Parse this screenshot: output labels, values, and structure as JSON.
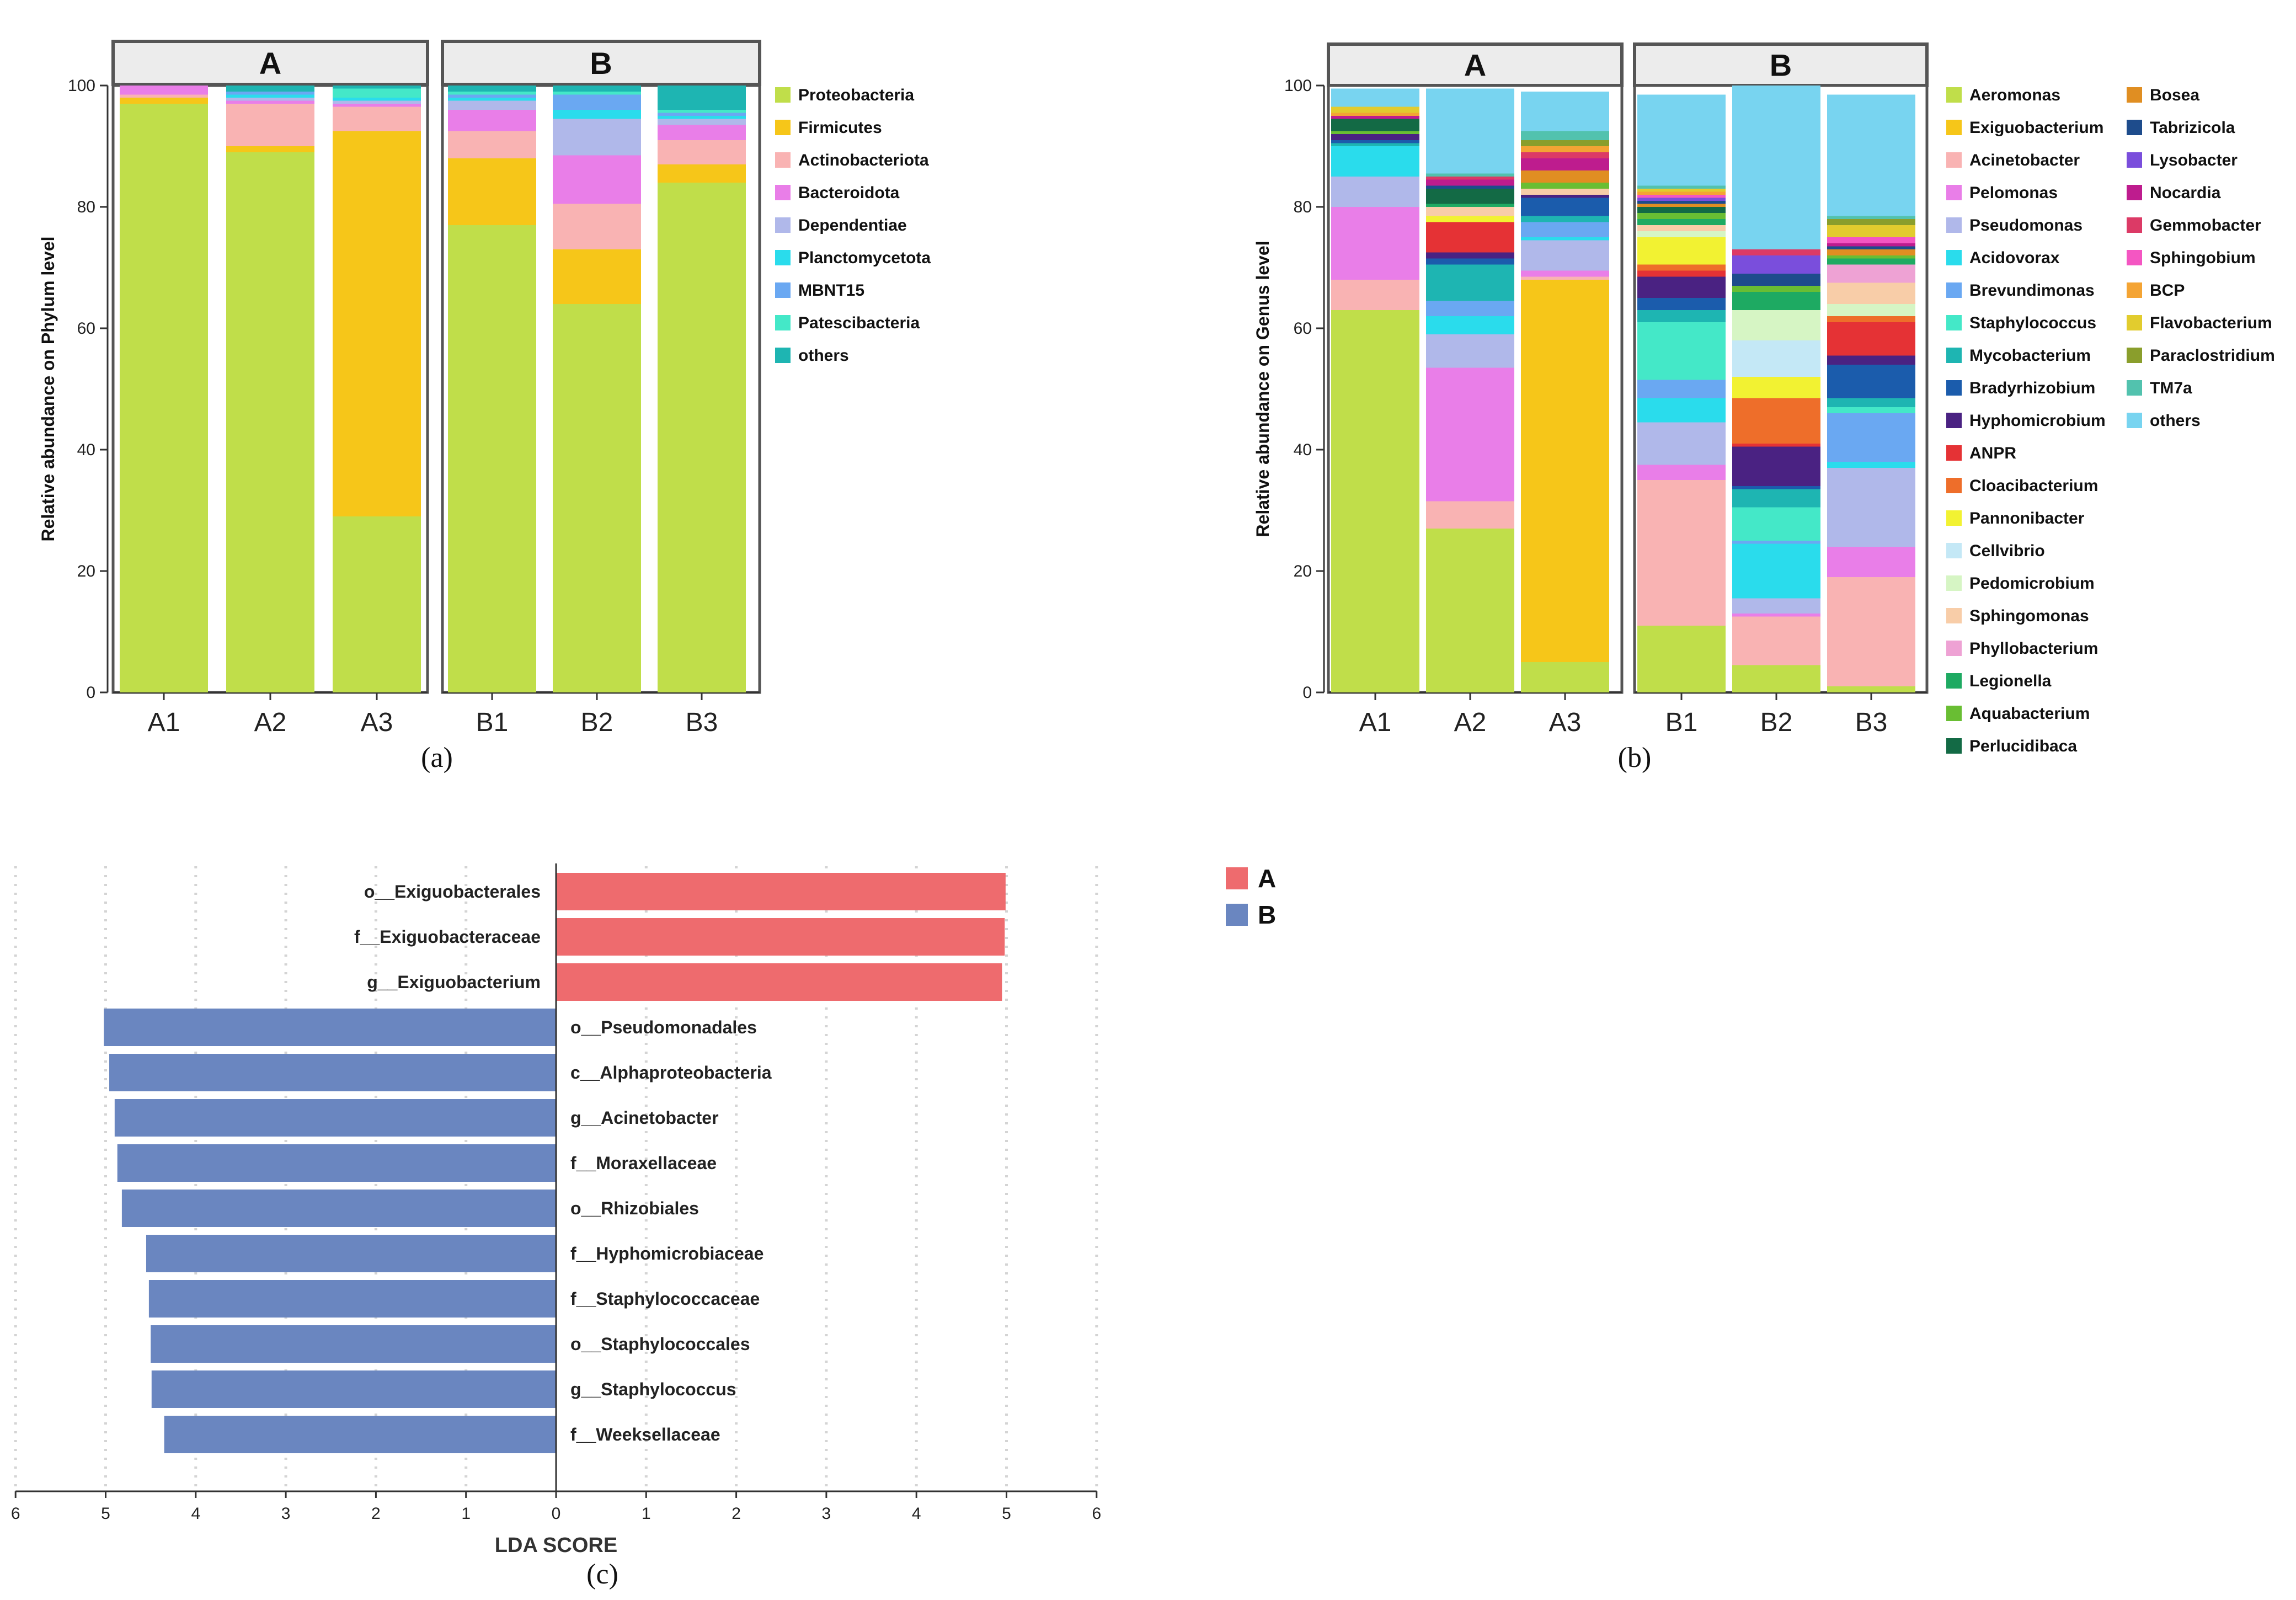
{
  "chart_data": [
    {
      "type": "bar",
      "stacked": true,
      "ylabel": "Relative abundance on Phylum level",
      "ylim": [
        0,
        100
      ],
      "yticks": [
        0,
        20,
        40,
        60,
        80,
        100
      ],
      "caption": "(a)",
      "facets": [
        {
          "label": "A",
          "categories": [
            "A1",
            "A2",
            "A3"
          ]
        },
        {
          "label": "B",
          "categories": [
            "B1",
            "B2",
            "B3"
          ]
        }
      ],
      "series": [
        {
          "name": "Proteobacteria",
          "color": "#C0DE4A",
          "values": [
            97,
            89,
            29,
            77,
            64,
            84
          ]
        },
        {
          "name": "Firmicutes",
          "color": "#F6C619",
          "values": [
            1,
            1,
            63.5,
            11,
            9,
            3
          ]
        },
        {
          "name": "Actinobacteriota",
          "color": "#F9B3B3",
          "values": [
            0.5,
            7,
            4,
            4.5,
            7.5,
            4
          ]
        },
        {
          "name": "Bacteroidota",
          "color": "#E97EE8",
          "values": [
            1.5,
            0.5,
            0.5,
            3.5,
            8,
            2.5
          ]
        },
        {
          "name": "Dependentiae",
          "color": "#B0B8EA",
          "values": [
            0,
            0.5,
            0.5,
            1.5,
            6,
            1
          ]
        },
        {
          "name": "Planctomycetota",
          "color": "#2ADCEC",
          "values": [
            0,
            0.5,
            0.5,
            0.5,
            1.5,
            0.5
          ]
        },
        {
          "name": "MBNT15",
          "color": "#6AA8F2",
          "values": [
            0,
            0.5,
            0,
            0.5,
            2.5,
            0.5
          ]
        },
        {
          "name": "Patescibacteria",
          "color": "#44E8C8",
          "values": [
            0,
            0,
            1.5,
            0.5,
            0.5,
            0.5
          ]
        },
        {
          "name": "others",
          "color": "#1EB5B2",
          "values": [
            0,
            1,
            0.5,
            1,
            1,
            4
          ]
        }
      ]
    },
    {
      "type": "bar",
      "stacked": true,
      "ylabel": "Relative abundance on Genus level",
      "ylim": [
        0,
        100
      ],
      "yticks": [
        0,
        20,
        40,
        60,
        80,
        100
      ],
      "caption": "(b)",
      "facets": [
        {
          "label": "A",
          "categories": [
            "A1",
            "A2",
            "A3"
          ]
        },
        {
          "label": "B",
          "categories": [
            "B1",
            "B2",
            "B3"
          ]
        }
      ],
      "series": [
        {
          "name": "Aeromonas",
          "color": "#C0DE4A",
          "values": [
            63,
            27,
            5,
            11,
            4.5,
            1
          ]
        },
        {
          "name": "Exiguobacterium",
          "color": "#F6C619",
          "values": [
            0,
            0,
            63,
            0,
            0,
            0
          ]
        },
        {
          "name": "Acinetobacter",
          "color": "#F9B3B3",
          "values": [
            5,
            4.5,
            0.5,
            24,
            8,
            18
          ]
        },
        {
          "name": "Pelomonas",
          "color": "#E97EE8",
          "values": [
            12,
            22,
            1,
            2.5,
            0.5,
            5
          ]
        },
        {
          "name": "Pseudomonas",
          "color": "#B0B8EA",
          "values": [
            5,
            5.5,
            5,
            7,
            2.5,
            13
          ]
        },
        {
          "name": "Acidovorax",
          "color": "#2ADCEC",
          "values": [
            5,
            3,
            0.5,
            4,
            9,
            1
          ]
        },
        {
          "name": "Brevundimonas",
          "color": "#6AA8F2",
          "values": [
            0,
            2.5,
            2.5,
            3,
            0.5,
            8
          ]
        },
        {
          "name": "Staphylococcus",
          "color": "#44E8C8",
          "values": [
            0,
            0,
            0,
            9.5,
            5.5,
            1
          ]
        },
        {
          "name": "Mycobacterium",
          "color": "#1EB5B2",
          "values": [
            0.5,
            6,
            1,
            2,
            3,
            1.5
          ]
        },
        {
          "name": "Bradyrhizobium",
          "color": "#1B5CAC",
          "values": [
            0.5,
            1,
            3,
            2,
            0.5,
            5.5
          ]
        },
        {
          "name": "Hyphomicrobium",
          "color": "#4A2282",
          "values": [
            1,
            1,
            0.5,
            3.5,
            6.5,
            1.5
          ]
        },
        {
          "name": "ANPR",
          "color": "#E53235",
          "values": [
            0,
            5,
            0,
            1,
            0.5,
            5.5
          ]
        },
        {
          "name": "Cloacibacterium",
          "color": "#EE6E2A",
          "values": [
            0,
            0,
            0,
            1,
            7.5,
            1
          ]
        },
        {
          "name": "Pannonibacter",
          "color": "#F2F232",
          "values": [
            0,
            1,
            0,
            4.5,
            3.5,
            0
          ]
        },
        {
          "name": "Cellvibrio",
          "color": "#C4E8F6",
          "values": [
            0,
            0,
            0,
            0,
            6,
            0
          ]
        },
        {
          "name": "Pedomicrobium",
          "color": "#D6F5C4",
          "values": [
            0,
            0,
            0,
            1,
            5,
            2
          ]
        },
        {
          "name": "Sphingomonas",
          "color": "#F8CDA8",
          "values": [
            0,
            1.5,
            1,
            1,
            0,
            3.5
          ]
        },
        {
          "name": "Phyllobacterium",
          "color": "#EEA2D4",
          "values": [
            0,
            0,
            0,
            0,
            0,
            3
          ]
        },
        {
          "name": "Legionella",
          "color": "#1EAA62",
          "values": [
            0,
            0.5,
            0,
            1,
            3,
            1
          ]
        },
        {
          "name": "Aquabacterium",
          "color": "#69BE33",
          "values": [
            0.5,
            0,
            1,
            1,
            1,
            0.5
          ]
        },
        {
          "name": "Perlucidibaca",
          "color": "#136A45",
          "values": [
            2,
            2.5,
            0,
            1,
            0,
            0
          ]
        },
        {
          "name": "Bosea",
          "color": "#E08E22",
          "values": [
            0,
            0,
            2,
            0.5,
            0,
            1
          ]
        },
        {
          "name": "Tabrizicola",
          "color": "#1E4C8C",
          "values": [
            0,
            0.5,
            0,
            0.5,
            2,
            0.5
          ]
        },
        {
          "name": "Lysobacter",
          "color": "#7A4EDC",
          "values": [
            0,
            0,
            0,
            0.5,
            3,
            0
          ]
        },
        {
          "name": "Nocardia",
          "color": "#BE1C8E",
          "values": [
            0.5,
            1,
            2,
            0,
            0,
            0.5
          ]
        },
        {
          "name": "Gemmobacter",
          "color": "#DC3A66",
          "values": [
            0,
            0.5,
            1,
            0,
            1,
            0
          ]
        },
        {
          "name": "Sphingobium",
          "color": "#F456C2",
          "values": [
            0,
            0,
            0,
            0.5,
            0,
            1
          ]
        },
        {
          "name": "BCP",
          "color": "#F4A434",
          "values": [
            0.5,
            0,
            1,
            0.5,
            0,
            0
          ]
        },
        {
          "name": "Flavobacterium",
          "color": "#E2CC2E",
          "values": [
            1,
            0,
            0,
            0.5,
            0,
            2
          ]
        },
        {
          "name": "Paraclostridium",
          "color": "#8A9E2C",
          "values": [
            0,
            0,
            1,
            0,
            0,
            1
          ]
        },
        {
          "name": "TM7a",
          "color": "#52C2AE",
          "values": [
            0,
            0.5,
            1.5,
            0.5,
            0,
            0.5
          ]
        },
        {
          "name": "others",
          "color": "#78D4F0",
          "values": [
            3,
            14,
            6.5,
            15,
            27,
            20
          ]
        }
      ]
    },
    {
      "type": "bar",
      "orientation": "horizontal",
      "xlabel": "LDA SCORE",
      "xlim": [
        -6,
        6
      ],
      "xtick_labels": [
        "6",
        "5",
        "4",
        "3",
        "2",
        "1",
        "0",
        "1",
        "2",
        "3",
        "4",
        "5",
        "6"
      ],
      "caption": "(c)",
      "legend": [
        {
          "name": "A",
          "color": "#EE6B6E"
        },
        {
          "name": "B",
          "color": "#6A86C0"
        }
      ],
      "bars": [
        {
          "label": "o__Exiguobacterales",
          "group": "A",
          "value": 4.99
        },
        {
          "label": "f__Exiguobacteraceae",
          "group": "A",
          "value": 4.98
        },
        {
          "label": "g__Exiguobacterium",
          "group": "A",
          "value": 4.95
        },
        {
          "label": "o__Pseudomonadales",
          "group": "B",
          "value": 5.02
        },
        {
          "label": "c__Alphaproteobacteria",
          "group": "B",
          "value": 4.96
        },
        {
          "label": "g__Acinetobacter",
          "group": "B",
          "value": 4.9
        },
        {
          "label": "f__Moraxellaceae",
          "group": "B",
          "value": 4.87
        },
        {
          "label": "o__Rhizobiales",
          "group": "B",
          "value": 4.82
        },
        {
          "label": "f__Hyphomicrobiaceae",
          "group": "B",
          "value": 4.55
        },
        {
          "label": "f__Staphylococcaceae",
          "group": "B",
          "value": 4.52
        },
        {
          "label": "o__Staphylococcales",
          "group": "B",
          "value": 4.5
        },
        {
          "label": "g__Staphylococcus",
          "group": "B",
          "value": 4.49
        },
        {
          "label": "f__Weeksellaceae",
          "group": "B",
          "value": 4.35
        }
      ]
    }
  ]
}
